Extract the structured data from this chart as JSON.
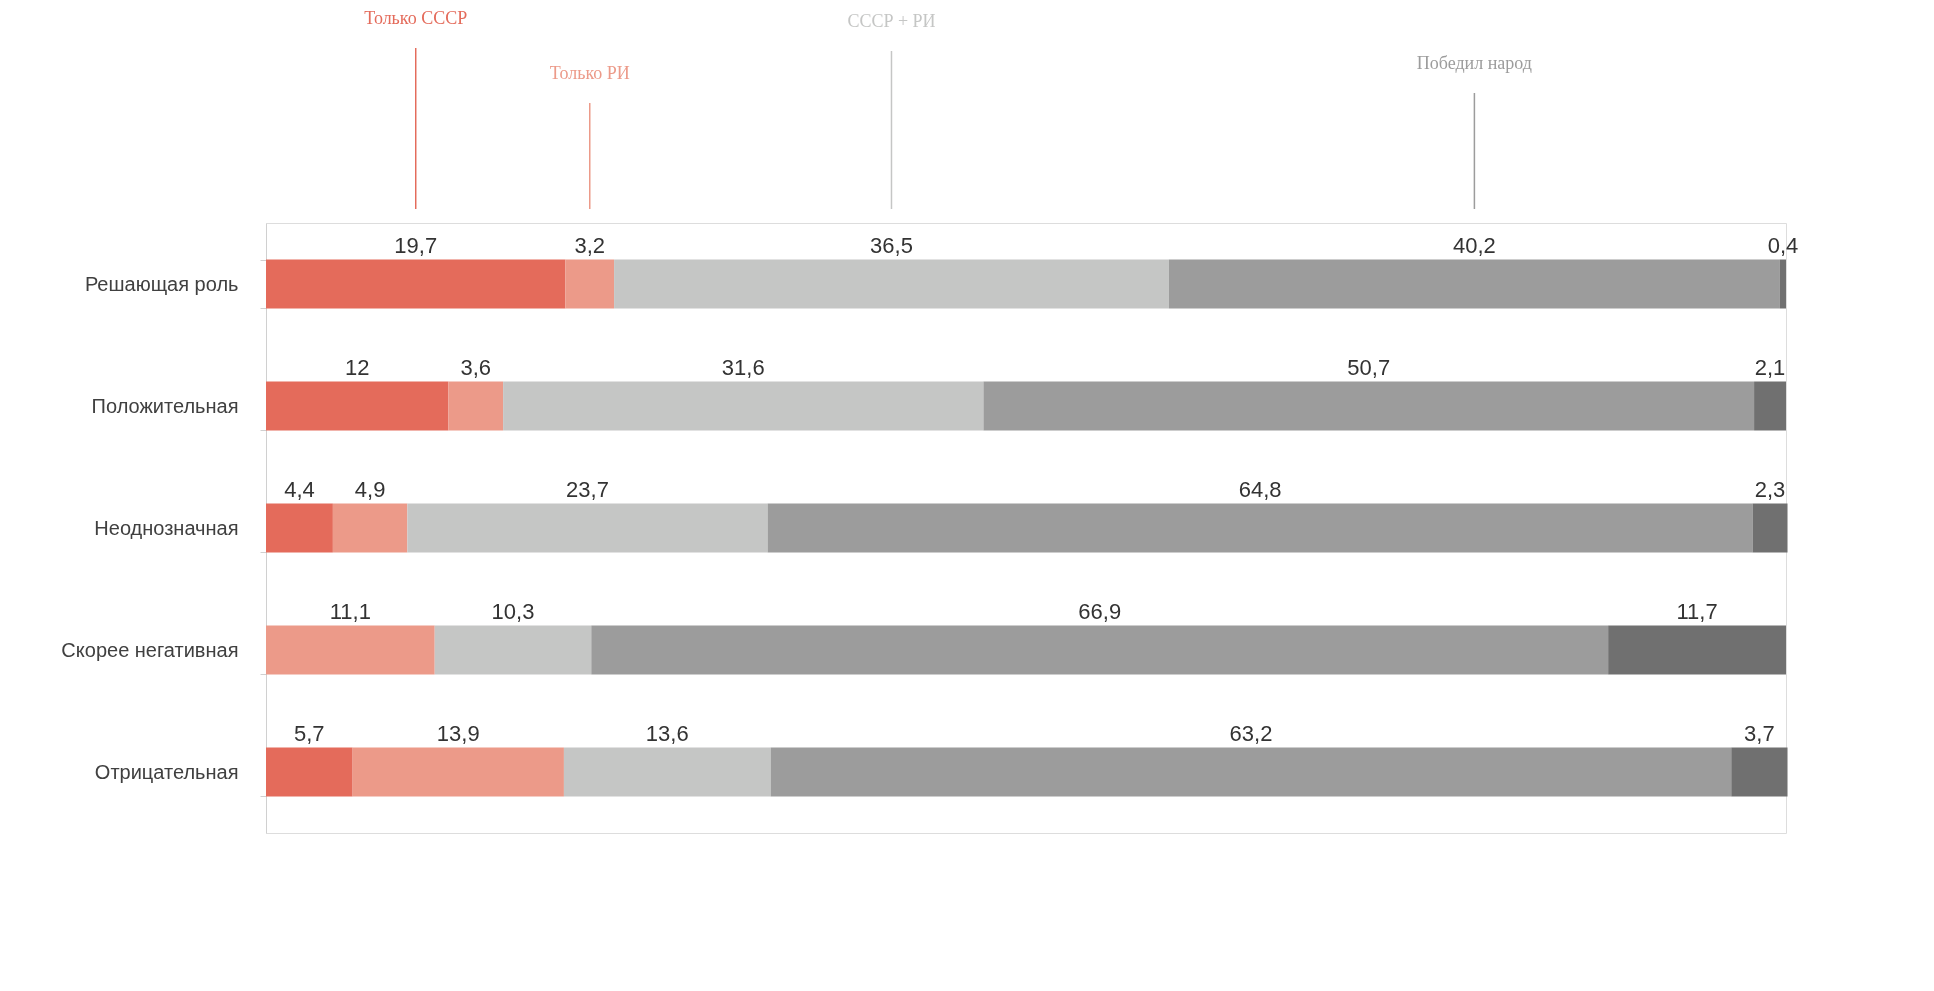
{
  "chart_data": {
    "type": "bar",
    "orientation": "horizontal",
    "stacked": true,
    "xlim": [
      0,
      100
    ],
    "tick_labels": "y",
    "categories": [
      "Решающая роль",
      "Положительная ",
      "Неоднозначная",
      "Скорее негативная",
      "Отрицательная"
    ],
    "series": [
      {
        "name": "Только СССР",
        "color": "#e46b5b",
        "values": [
          19.7,
          12,
          4.4,
          null,
          5.7
        ],
        "value_labels": [
          "19,7",
          "12",
          "4,4",
          null,
          "5,7"
        ]
      },
      {
        "name": "Только РИ",
        "color": "#ec9a89",
        "values": [
          3.2,
          3.6,
          4.9,
          11.1,
          13.9
        ],
        "value_labels": [
          "3,2",
          "3,6",
          "4,9",
          "11,1",
          "13,9"
        ]
      },
      {
        "name": "СССР + РИ",
        "color": "#c5c6c5",
        "values": [
          36.5,
          31.6,
          23.7,
          10.3,
          13.6
        ],
        "value_labels": [
          "36,5",
          "31,6",
          "23,7",
          "10,3",
          "13,6"
        ]
      },
      {
        "name": "Победил народ",
        "color": "#9c9c9c",
        "values": [
          40.2,
          50.7,
          64.8,
          66.9,
          63.2
        ],
        "value_labels": [
          "40,2",
          "50,7",
          "64,8",
          "66,9",
          "63,2"
        ]
      },
      {
        "color": "#707070",
        "values": [
          0.4,
          2.1,
          2.3,
          11.7,
          3.7
        ],
        "value_labels": [
          "0,4",
          "2,1",
          "2,3",
          "11,7",
          "3,7"
        ]
      }
    ]
  }
}
